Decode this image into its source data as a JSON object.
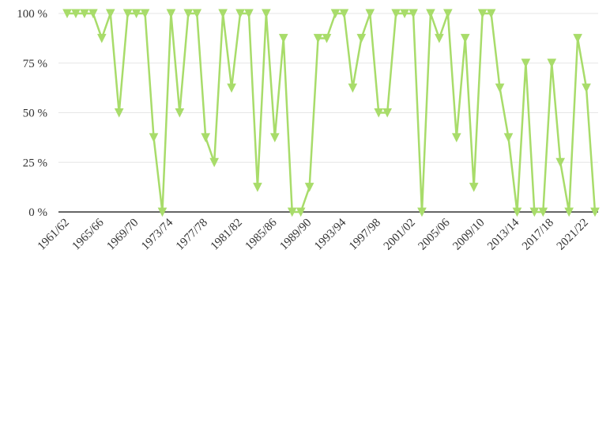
{
  "chart_data": {
    "type": "line",
    "title": "",
    "xlabel": "",
    "ylabel": "",
    "ylim": [
      0,
      100
    ],
    "y_ticks": [
      0,
      25,
      50,
      75,
      100
    ],
    "y_tick_labels": [
      "0 %",
      "25 %",
      "50 %",
      "75 %",
      "100 %"
    ],
    "x_tick_labels": [
      "1961/62",
      "1965/66",
      "1969/70",
      "1973/74",
      "1977/78",
      "1981/82",
      "1985/86",
      "1989/90",
      "1993/94",
      "1997/98",
      "2001/02",
      "2005/06",
      "2009/10",
      "2013/14",
      "2017/18",
      "2021/22"
    ],
    "grid": true,
    "legend": "none",
    "colors": {
      "series": "#a8dc6a",
      "axis": "#333333",
      "grid": "#e6e6e6",
      "text": "#333333"
    },
    "marker": "triangle-down",
    "categories": [
      "1961/62",
      "1962/63",
      "1963/64",
      "1964/65",
      "1965/66",
      "1966/67",
      "1967/68",
      "1968/69",
      "1969/70",
      "1970/71",
      "1971/72",
      "1972/73",
      "1973/74",
      "1974/75",
      "1975/76",
      "1976/77",
      "1977/78",
      "1978/79",
      "1979/80",
      "1980/81",
      "1981/82",
      "1982/83",
      "1983/84",
      "1984/85",
      "1985/86",
      "1986/87",
      "1987/88",
      "1988/89",
      "1989/90",
      "1990/91",
      "1991/92",
      "1992/93",
      "1993/94",
      "1994/95",
      "1995/96",
      "1996/97",
      "1997/98",
      "1998/99",
      "1999/00",
      "2000/01",
      "2001/02",
      "2002/03",
      "2003/04",
      "2004/05",
      "2005/06",
      "2006/07",
      "2007/08",
      "2008/09",
      "2009/10",
      "2010/11",
      "2011/12",
      "2012/13",
      "2013/14",
      "2014/15",
      "2015/16",
      "2016/17",
      "2017/18",
      "2018/19",
      "2019/20",
      "2020/21",
      "2021/22",
      "2022/23"
    ],
    "series": [
      {
        "values": [
          100,
          100,
          100,
          100,
          87.5,
          100,
          50,
          100,
          100,
          100,
          37.5,
          0,
          100,
          50,
          100,
          100,
          37.5,
          25,
          100,
          62.5,
          100,
          100,
          12.5,
          100,
          37.5,
          87.5,
          0,
          0,
          12.5,
          87.5,
          87.5,
          100,
          100,
          62.5,
          87.5,
          100,
          50,
          50,
          100,
          100,
          100,
          0,
          100,
          87.5,
          100,
          37.5,
          87.5,
          12.5,
          100,
          100,
          62.5,
          37.5,
          0,
          75,
          0,
          0,
          75,
          25,
          0,
          87.5,
          62.5,
          0
        ]
      }
    ]
  }
}
